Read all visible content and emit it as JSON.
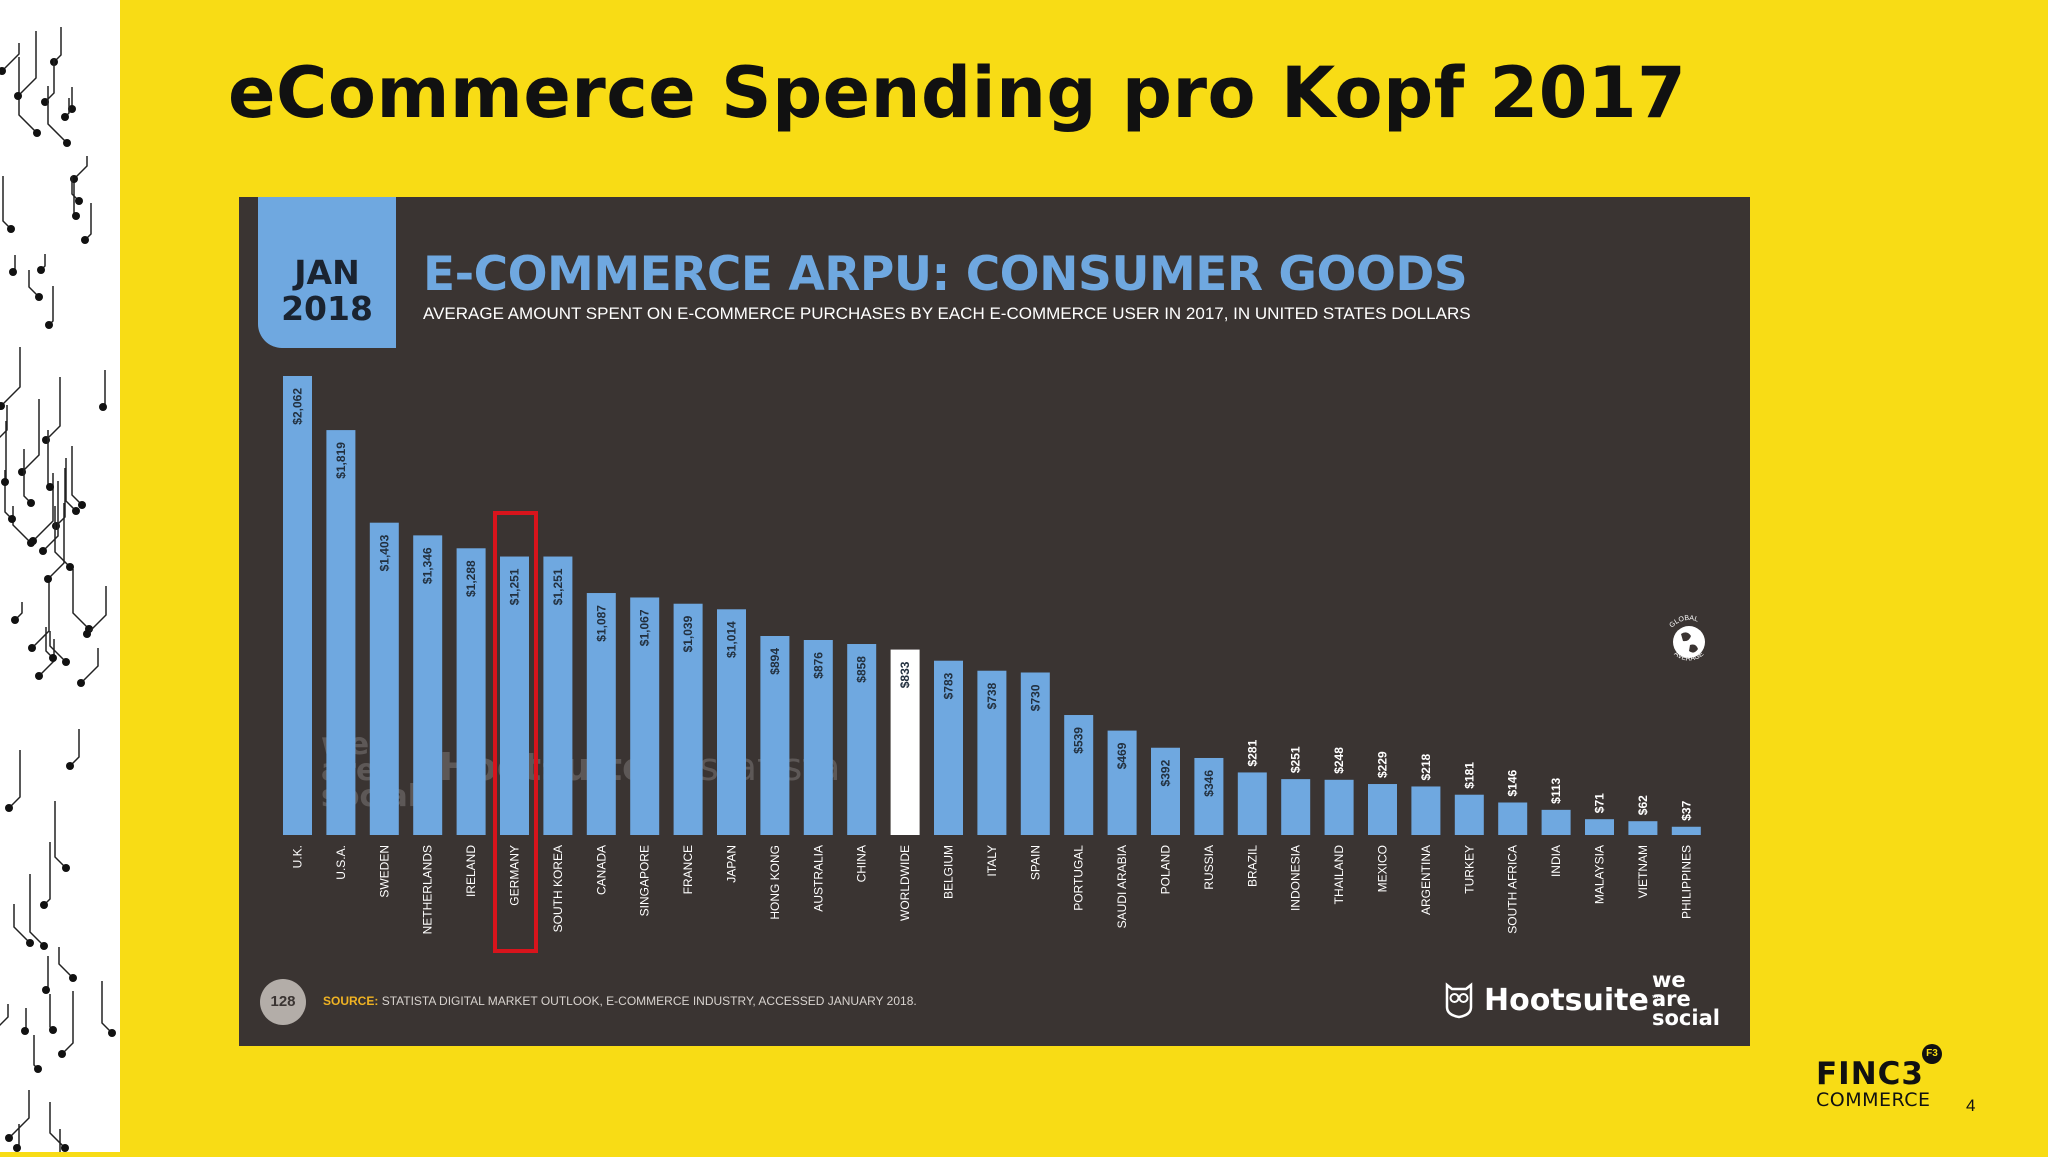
{
  "slide": {
    "title": "eCommerce Spending pro Kopf 2017",
    "page_number": "4",
    "logo_top": "FINC3",
    "logo_bottom": "COMMERCE",
    "logo_badge": "F3"
  },
  "panel": {
    "date_month": "JAN",
    "date_year": "2018",
    "page_badge": "128",
    "source_label": "SOURCE:",
    "source_text": "STATISTA DIGITAL MARKET OUTLOOK, E-COMMERCE INDUSTRY, ACCESSED JANUARY 2018.",
    "hootsuite": "Hootsuite",
    "tm": "™",
    "wearesocial": [
      "we",
      "are",
      "social"
    ],
    "watermark_statista": "statista",
    "globe_text_top": "GLOBAL",
    "globe_text_bottom": "AVERAGE"
  },
  "colors": {
    "background": "#f8dc15",
    "panel": "#3a3432",
    "bar": "#6fa8e0",
    "highlight_bar": "#ffffff",
    "highlight_box": "#d8141c",
    "title_blue": "#6fa8e0"
  },
  "chart_data": {
    "type": "bar",
    "title": "E-COMMERCE ARPU: CONSUMER GOODS",
    "subtitle": "AVERAGE AMOUNT SPENT ON E-COMMERCE PURCHASES BY EACH E-COMMERCE USER IN 2017, IN UNITED STATES DOLLARS",
    "categories": [
      "U.K.",
      "U.S.A.",
      "SWEDEN",
      "NETHERLANDS",
      "IRELAND",
      "GERMANY",
      "SOUTH KOREA",
      "CANADA",
      "SINGAPORE",
      "FRANCE",
      "JAPAN",
      "HONG KONG",
      "AUSTRALIA",
      "CHINA",
      "WORLDWIDE",
      "BELGIUM",
      "ITALY",
      "SPAIN",
      "PORTUGAL",
      "SAUDI ARABIA",
      "POLAND",
      "RUSSIA",
      "BRAZIL",
      "INDONESIA",
      "THAILAND",
      "MEXICO",
      "ARGENTINA",
      "TURKEY",
      "SOUTH AFRICA",
      "INDIA",
      "MALAYSIA",
      "VIETNAM",
      "PHILIPPINES"
    ],
    "values": [
      2062,
      1819,
      1403,
      1346,
      1288,
      1251,
      1251,
      1087,
      1067,
      1039,
      1014,
      894,
      876,
      858,
      833,
      783,
      738,
      730,
      539,
      469,
      392,
      346,
      281,
      251,
      248,
      229,
      218,
      181,
      146,
      113,
      71,
      62,
      37
    ],
    "value_labels": [
      "$2,062",
      "$1,819",
      "$1,403",
      "$1,346",
      "$1,288",
      "$1,251",
      "$1,251",
      "$1,087",
      "$1,067",
      "$1,039",
      "$1,014",
      "$894",
      "$876",
      "$858",
      "$833",
      "$783",
      "$738",
      "$730",
      "$539",
      "$469",
      "$392",
      "$346",
      "$281",
      "$251",
      "$248",
      "$229",
      "$218",
      "$181",
      "$146",
      "$113",
      "$71",
      "$62",
      "$37"
    ],
    "highlight_category": "WORLDWIDE",
    "boxed_category": "GERMANY",
    "ylim": [
      0,
      2062
    ],
    "grid": false,
    "legend": "none"
  }
}
